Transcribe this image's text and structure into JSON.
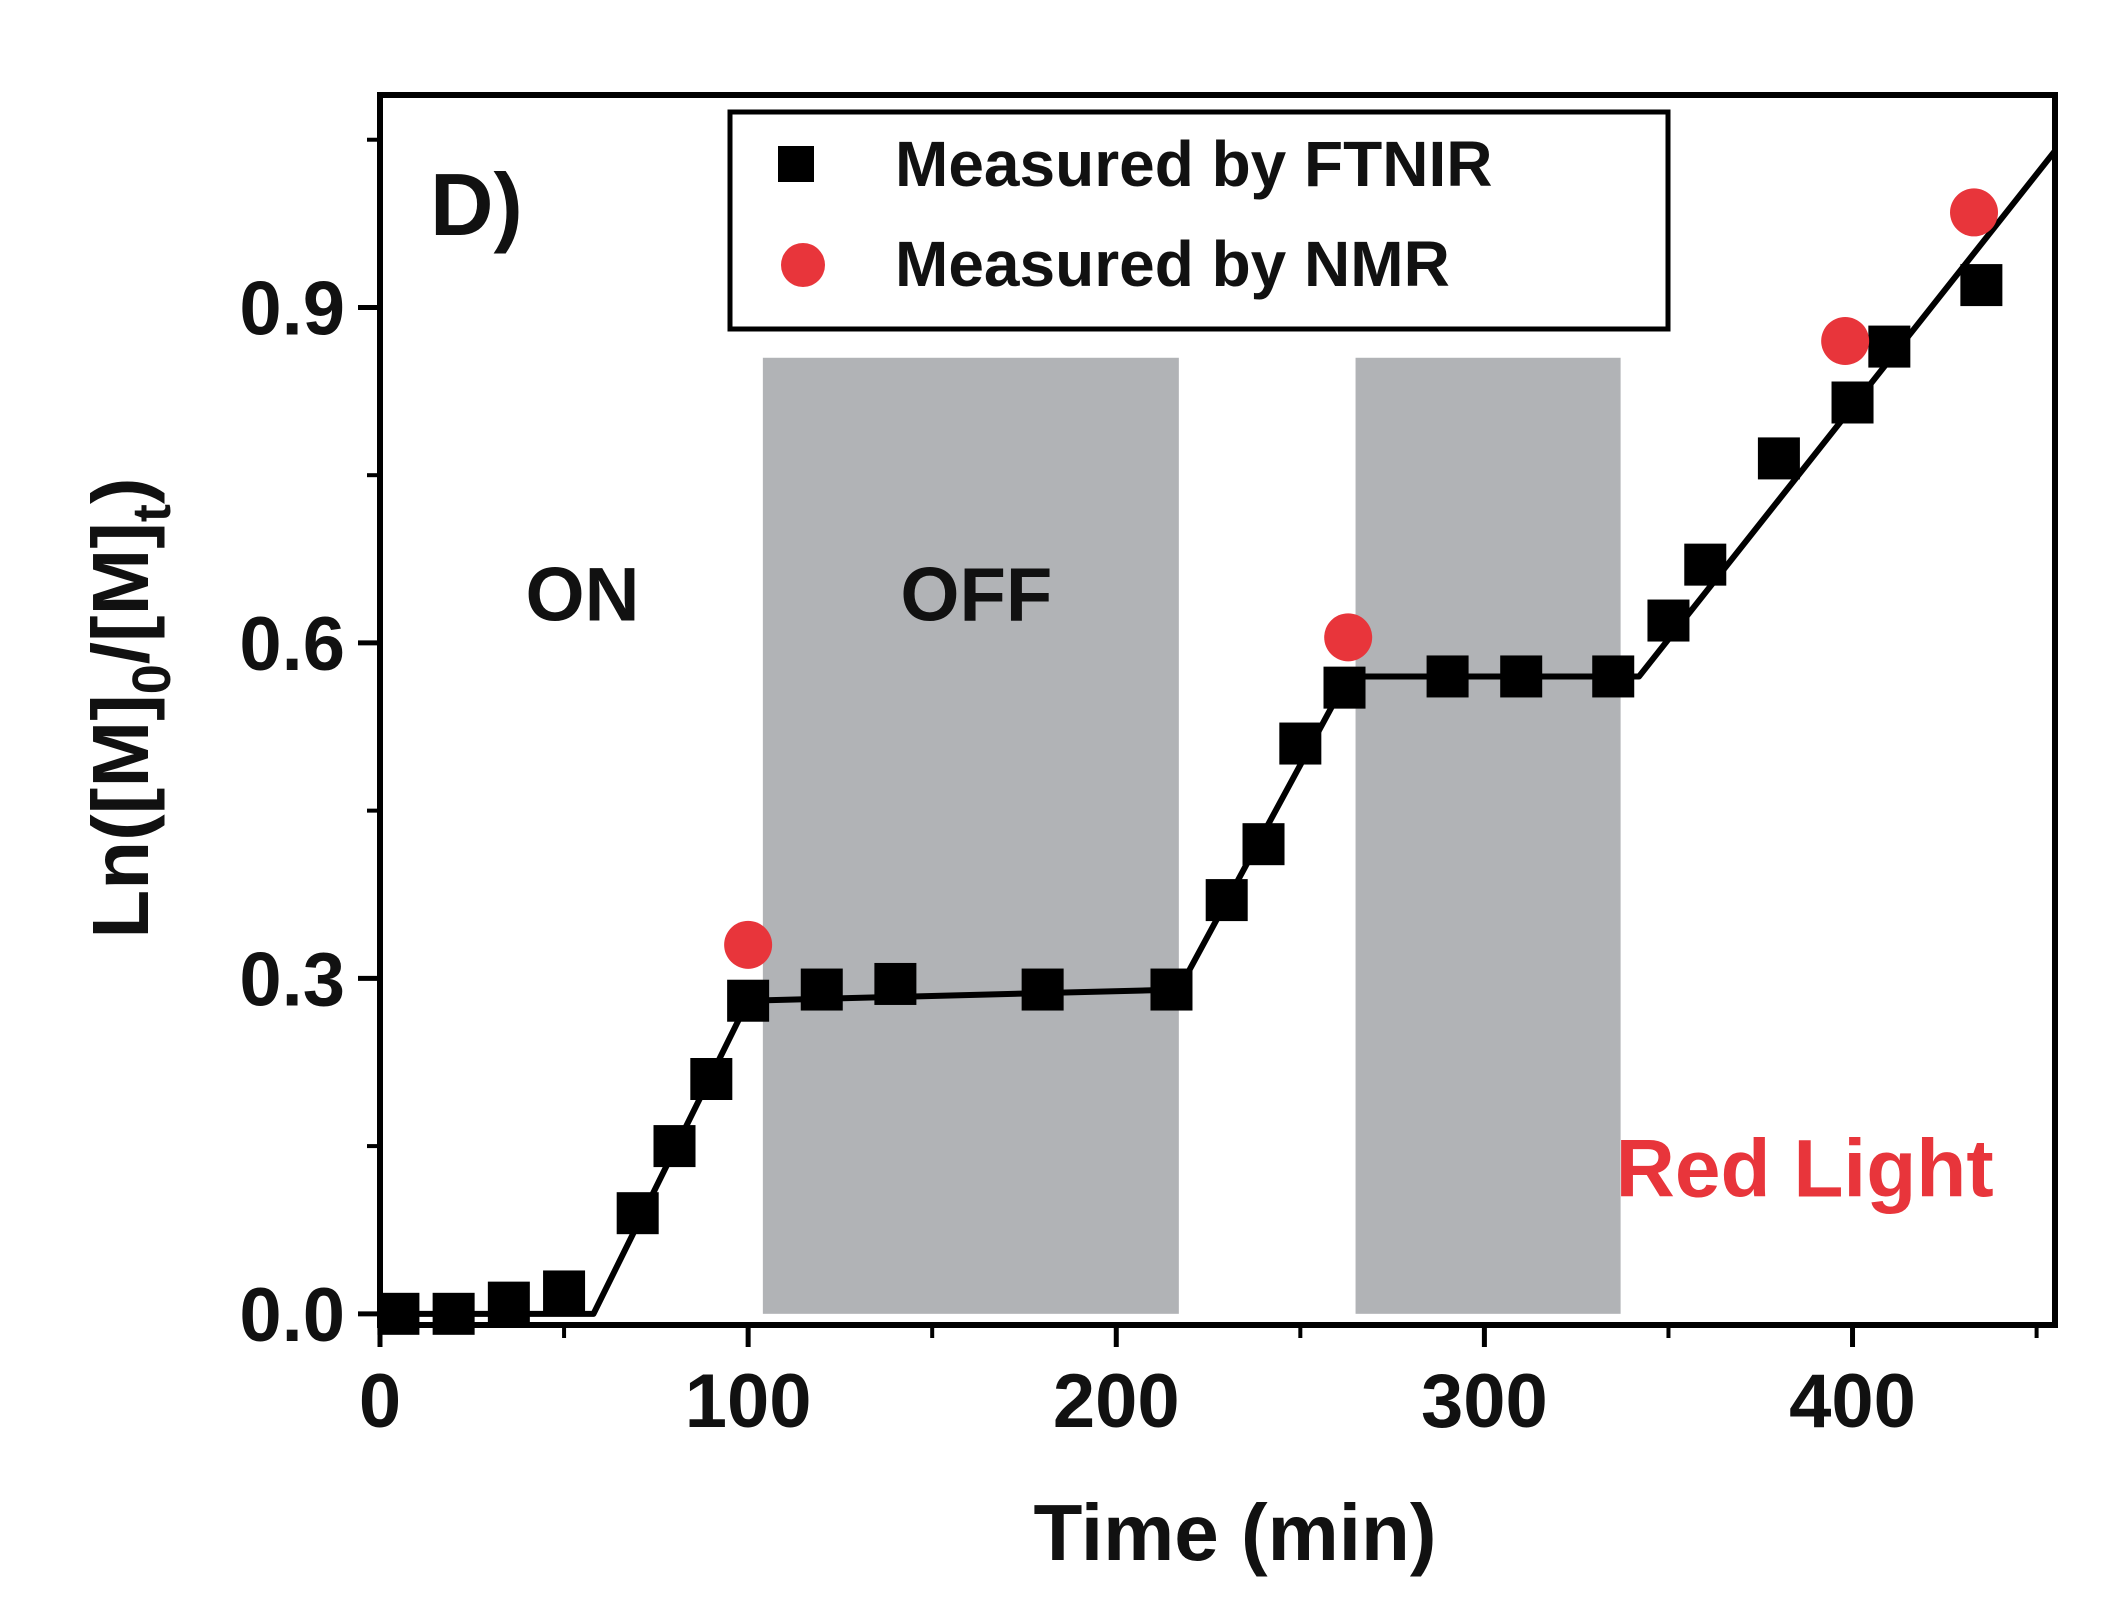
{
  "panel_label": "D)",
  "chart_data": {
    "type": "scatter",
    "title": "",
    "xlabel": "Time (min)",
    "ylabel_parts": {
      "pre": "Ln([M]",
      "sub0": "0",
      "mid": "/[M]",
      "subt": "t",
      "post": ")"
    },
    "xlim": [
      0,
      455
    ],
    "ylim": [
      -0.01,
      1.09
    ],
    "x_ticks": [
      0,
      100,
      200,
      300,
      400
    ],
    "x_tick_labels": [
      "0",
      "100",
      "200",
      "300",
      "400"
    ],
    "x_minor_ticks": [
      50,
      150,
      250,
      350,
      450
    ],
    "y_ticks": [
      0.0,
      0.3,
      0.6,
      0.9
    ],
    "y_tick_labels": [
      "0.0",
      "0.3",
      "0.6",
      "0.9"
    ],
    "y_minor_ticks": [
      0.15,
      0.45,
      0.75,
      1.05
    ],
    "grid": false,
    "legend_position": "top-center",
    "shaded_regions": [
      {
        "x0": 104,
        "x1": 217,
        "y0": 0.0,
        "y1": 0.855
      },
      {
        "x0": 265,
        "x1": 337,
        "y0": 0.0,
        "y1": 0.855
      }
    ],
    "region_labels": [
      {
        "text": "ON",
        "x": 55,
        "y": 0.62
      },
      {
        "text": "OFF",
        "x": 162,
        "y": 0.62
      }
    ],
    "annotation": {
      "text": "Red Light",
      "x": 387,
      "y": 0.105,
      "color": "#e8353b"
    },
    "series": [
      {
        "name": "Measured by FTNIR",
        "marker": "square",
        "color": "#000000",
        "x": [
          5,
          20,
          35,
          50,
          70,
          80,
          90,
          100,
          120,
          140,
          180,
          215,
          230,
          240,
          250,
          262,
          290,
          310,
          335,
          350,
          360,
          380,
          400,
          410,
          435
        ],
        "y": [
          0.0,
          0.0,
          0.01,
          0.02,
          0.09,
          0.15,
          0.21,
          0.28,
          0.29,
          0.295,
          0.29,
          0.29,
          0.37,
          0.42,
          0.51,
          0.56,
          0.57,
          0.57,
          0.57,
          0.62,
          0.67,
          0.765,
          0.815,
          0.865,
          0.92
        ]
      },
      {
        "name": "Measured by NMR",
        "marker": "circle",
        "color": "#e8353b",
        "x": [
          100,
          263,
          398,
          433
        ],
        "y": [
          0.33,
          0.605,
          0.87,
          0.985
        ]
      }
    ],
    "fit_line": {
      "x": [
        0,
        58,
        100,
        217,
        263,
        342,
        455
      ],
      "y": [
        0.0,
        0.0,
        0.28,
        0.29,
        0.57,
        0.57,
        1.04
      ]
    }
  }
}
